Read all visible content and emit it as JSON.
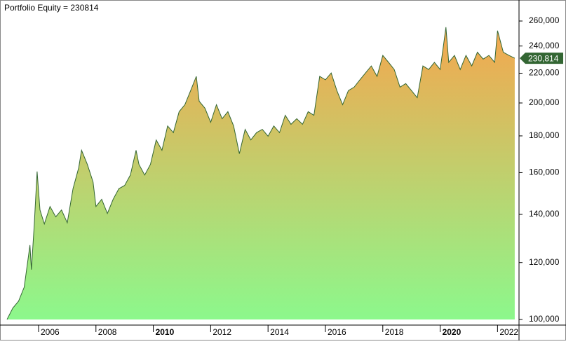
{
  "chart_data": {
    "type": "area",
    "title": "Portfolio Equity = 230814",
    "log_scale": true,
    "color": "#336633",
    "fill_colors": [
      "#f5a64e",
      "#8cf88c"
    ],
    "xlim": [
      2004.9,
      2022.7
    ],
    "xticks": [
      2006,
      2008,
      2010,
      2012,
      2014,
      2016,
      2018,
      2020,
      2022
    ],
    "xticks_bold": [
      2010,
      2020
    ],
    "ylim": [
      100000,
      275000
    ],
    "yticks": [
      {
        "value": 100000,
        "label": "100,000"
      },
      {
        "value": 120000,
        "label": "120,000"
      },
      {
        "value": 140000,
        "label": "140,000"
      },
      {
        "value": 160000,
        "label": "160,000"
      },
      {
        "value": 180000,
        "label": "180,000"
      },
      {
        "value": 200000,
        "label": "200,000"
      },
      {
        "value": 220000,
        "label": "220,000"
      },
      {
        "value": 240000,
        "label": "240,000"
      },
      {
        "value": 260000,
        "label": "260,000"
      }
    ],
    "current": {
      "value": 230814,
      "label": "230,814"
    },
    "x": [
      2004.9,
      2005.1,
      2005.3,
      2005.5,
      2005.6,
      2005.7,
      2005.75,
      2005.85,
      2005.95,
      2006.05,
      2006.2,
      2006.4,
      2006.6,
      2006.8,
      2007.0,
      2007.2,
      2007.4,
      2007.5,
      2007.7,
      2007.9,
      2008.0,
      2008.2,
      2008.4,
      2008.6,
      2008.8,
      2009.0,
      2009.2,
      2009.4,
      2009.5,
      2009.7,
      2009.9,
      2010.1,
      2010.3,
      2010.5,
      2010.7,
      2010.9,
      2011.1,
      2011.3,
      2011.5,
      2011.6,
      2011.8,
      2012.0,
      2012.2,
      2012.4,
      2012.6,
      2012.8,
      2013.0,
      2013.2,
      2013.4,
      2013.6,
      2013.8,
      2014.0,
      2014.2,
      2014.4,
      2014.6,
      2014.8,
      2015.0,
      2015.2,
      2015.4,
      2015.6,
      2015.8,
      2016.0,
      2016.2,
      2016.4,
      2016.6,
      2016.8,
      2017.0,
      2017.2,
      2017.4,
      2017.6,
      2017.8,
      2018.0,
      2018.2,
      2018.4,
      2018.6,
      2018.8,
      2019.0,
      2019.2,
      2019.4,
      2019.6,
      2019.8,
      2020.0,
      2020.1,
      2020.2,
      2020.3,
      2020.5,
      2020.7,
      2020.9,
      2021.1,
      2021.3,
      2021.5,
      2021.7,
      2021.9,
      2022.0,
      2022.2,
      2022.4,
      2022.6
    ],
    "values": [
      100000,
      103700,
      106000,
      110900,
      118600,
      126900,
      117300,
      135800,
      160600,
      142000,
      135800,
      143600,
      138900,
      142000,
      136300,
      152000,
      162500,
      171900,
      164300,
      155300,
      143600,
      146900,
      140400,
      146900,
      152000,
      153600,
      158800,
      171900,
      164300,
      158800,
      164300,
      177700,
      171900,
      185800,
      181900,
      194500,
      198900,
      208100,
      217800,
      201100,
      196700,
      188000,
      198900,
      190200,
      194500,
      185800,
      170000,
      183800,
      177700,
      181900,
      183800,
      179800,
      185800,
      181900,
      192300,
      186800,
      190200,
      186800,
      194500,
      192300,
      217800,
      215400,
      220200,
      208100,
      198900,
      208100,
      210400,
      215400,
      220200,
      225200,
      217800,
      232900,
      227800,
      222600,
      210400,
      212800,
      208100,
      203400,
      225200,
      222600,
      227800,
      222600,
      238000,
      254900,
      227800,
      232900,
      222600,
      232900,
      225200,
      235300,
      230200,
      232900,
      227800,
      252100,
      235300,
      232900,
      230814
    ]
  }
}
